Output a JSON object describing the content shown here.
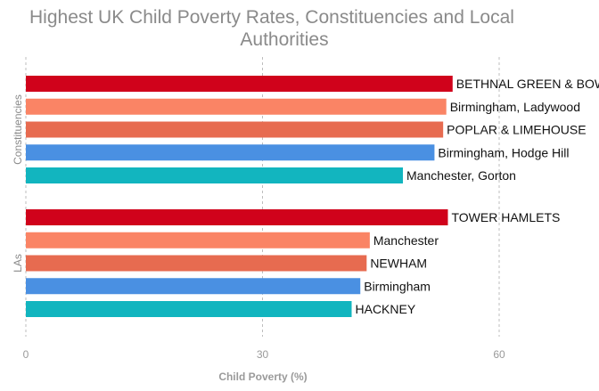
{
  "chart_data": {
    "type": "bar",
    "orientation": "horizontal",
    "title_lines": [
      "Highest UK Child Poverty Rates, Constituencies and Local",
      "Authorities"
    ],
    "xlabel": "Child Poverty (%)",
    "xlim": [
      0,
      72
    ],
    "xticks": [
      0,
      30,
      60
    ],
    "grid": "vertical dashed",
    "groups": [
      {
        "name": "Constituencies",
        "bars": [
          {
            "label": "BETHNAL GREEN & BOW",
            "value": 54.1,
            "color": "#d0021b"
          },
          {
            "label": "Birmingham, Ladywood",
            "value": 53.3,
            "color": "#fa8465"
          },
          {
            "label": "POPLAR & LIMEHOUSE",
            "value": 52.9,
            "color": "#e76b50"
          },
          {
            "label": "Birmingham, Hodge Hill",
            "value": 51.8,
            "color": "#4a90e2"
          },
          {
            "label": "Manchester, Gorton",
            "value": 47.8,
            "color": "#12b5bf"
          }
        ]
      },
      {
        "name": "LAs",
        "bars": [
          {
            "label": "TOWER HAMLETS",
            "value": 53.5,
            "color": "#d0021b"
          },
          {
            "label": "Manchester",
            "value": 43.6,
            "color": "#fa8465"
          },
          {
            "label": "NEWHAM",
            "value": 43.2,
            "color": "#e76b50"
          },
          {
            "label": "Birmingham",
            "value": 42.4,
            "color": "#4a90e2"
          },
          {
            "label": "HACKNEY",
            "value": 41.3,
            "color": "#12b5bf"
          }
        ]
      }
    ]
  }
}
